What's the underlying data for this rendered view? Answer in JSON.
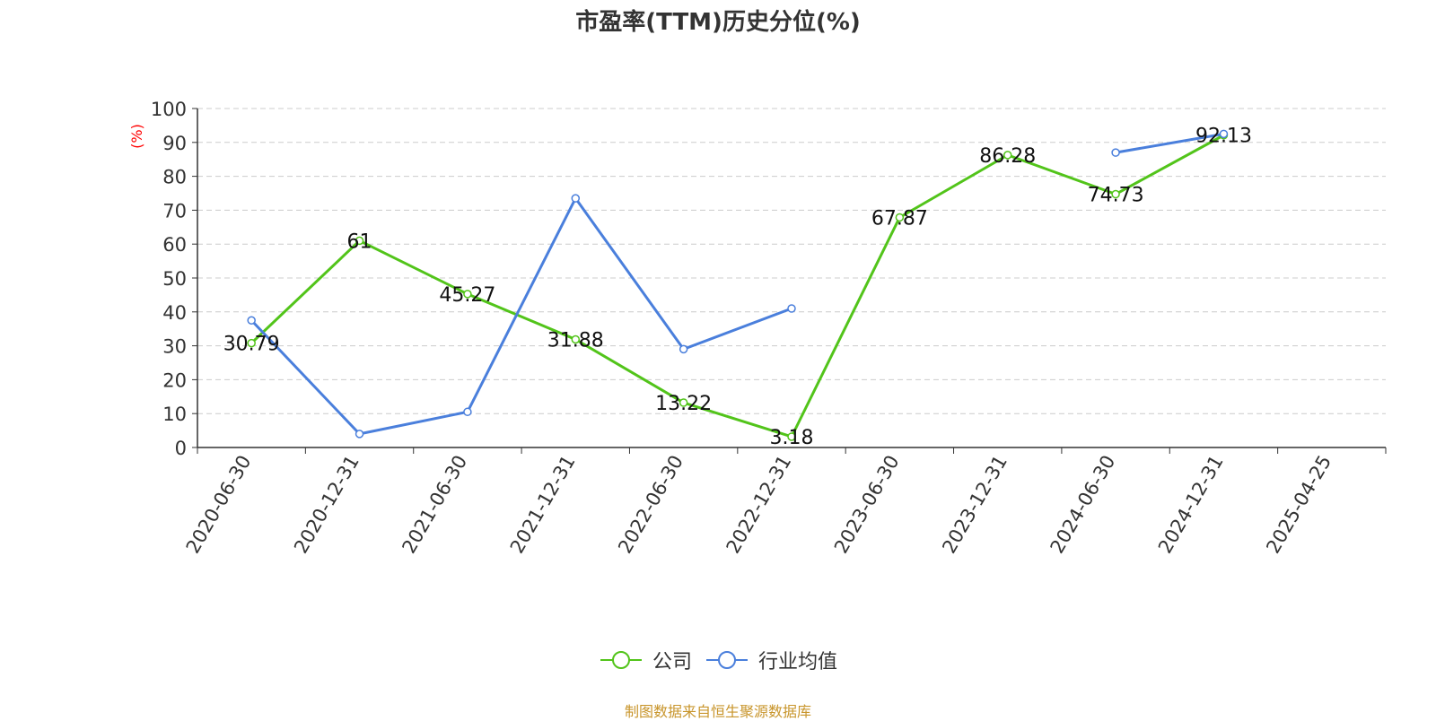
{
  "title": "市盈率(TTM)历史分位(%)",
  "source_note": "制图数据来自恒生聚源数据库",
  "colors": {
    "company": "#52c41a",
    "industry": "#4a7fdc",
    "axis": "#333333",
    "grid": "#cccccc",
    "unit": "#ff0000",
    "source": "#c8952b"
  },
  "chart_data": {
    "type": "line",
    "title": "市盈率(TTM)历史分位(%)",
    "ylabel": "(%)",
    "ylim": [
      0,
      100
    ],
    "yticks": [
      "0",
      "10",
      "20",
      "30",
      "40",
      "50",
      "60",
      "70",
      "80",
      "90",
      "100"
    ],
    "categories": [
      "2020-06-30",
      "2020-12-31",
      "2021-06-30",
      "2021-12-31",
      "2022-06-30",
      "2022-12-31",
      "2023-06-30",
      "2023-12-31",
      "2024-06-30",
      "2024-12-31",
      "2025-04-25"
    ],
    "grid": true,
    "legend_position": "bottom-center",
    "series": [
      {
        "name": "公司",
        "color": "#52c41a",
        "show_labels": true,
        "values": [
          30.79,
          61,
          45.27,
          31.88,
          13.22,
          3.18,
          67.87,
          86.28,
          74.73,
          92.13,
          null
        ],
        "labels": [
          "30.79",
          "61",
          "45.27",
          "31.88",
          "13.22",
          "3.18",
          "67.87",
          "86.28",
          "74.73",
          "92.13",
          ""
        ]
      },
      {
        "name": "行业均值",
        "color": "#4a7fdc",
        "show_labels": false,
        "values": [
          37.5,
          4,
          10.5,
          73.5,
          29,
          41,
          null,
          null,
          87,
          92.5,
          null
        ]
      }
    ]
  }
}
